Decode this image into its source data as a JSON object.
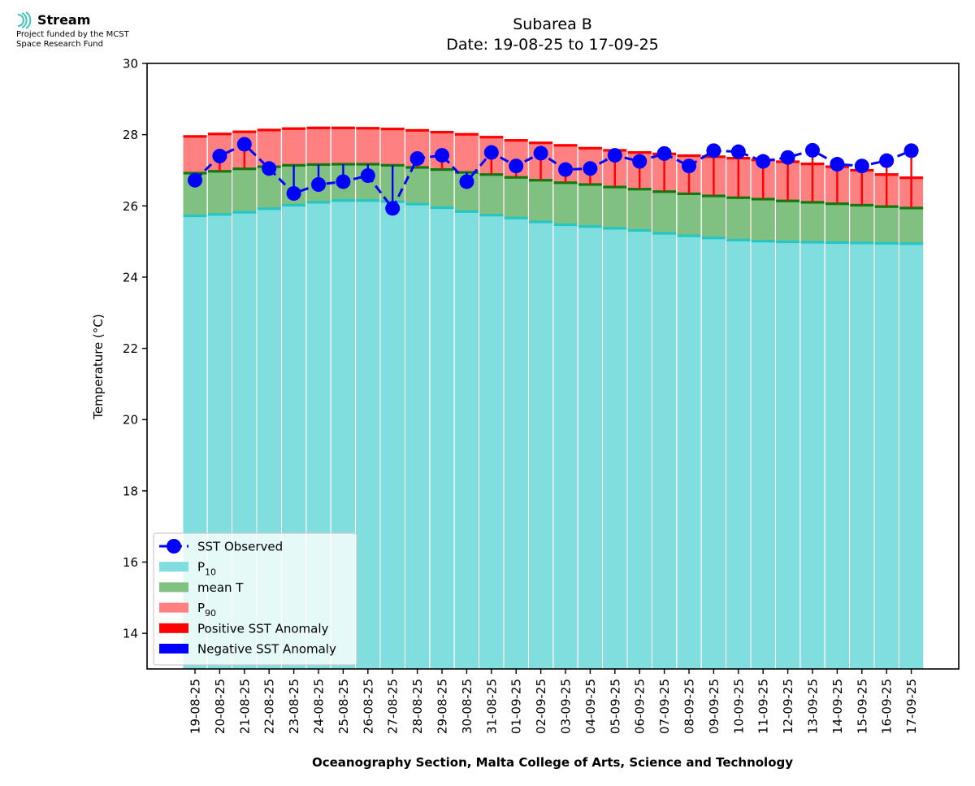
{
  "logo": {
    "name": "Stream",
    "line1": "Project funded by the MCST",
    "line2": "Space Research Fund"
  },
  "chart_data": {
    "type": "bar",
    "title": "Subarea B",
    "subtitle": "Date: 19-08-25 to 17-09-25",
    "xlabel": "Oceanography Section, Malta College of Arts, Science and Technology",
    "ylabel": "Temperature (°C)",
    "ylim": [
      13,
      30
    ],
    "yticks": [
      14,
      16,
      18,
      20,
      22,
      24,
      26,
      28,
      30
    ],
    "grid": false,
    "legend_placement": "lower-left",
    "categories": [
      "19-08-25",
      "20-08-25",
      "21-08-25",
      "22-08-25",
      "23-08-25",
      "24-08-25",
      "25-08-25",
      "26-08-25",
      "27-08-25",
      "28-08-25",
      "29-08-25",
      "30-08-25",
      "31-08-25",
      "01-09-25",
      "02-09-25",
      "03-09-25",
      "04-09-25",
      "05-09-25",
      "06-09-25",
      "07-09-25",
      "08-09-25",
      "09-09-25",
      "10-09-25",
      "11-09-25",
      "12-09-25",
      "13-09-25",
      "14-09-25",
      "15-09-25",
      "16-09-25",
      "17-09-25"
    ],
    "series": [
      {
        "name": "P10",
        "color": "#80dede",
        "edge_color": "#26c6c6",
        "values": [
          25.72,
          25.76,
          25.82,
          25.92,
          26.02,
          26.1,
          26.15,
          26.15,
          26.12,
          26.05,
          25.95,
          25.84,
          25.74,
          25.66,
          25.55,
          25.47,
          25.42,
          25.37,
          25.31,
          25.23,
          25.16,
          25.1,
          25.04,
          25.01,
          24.99,
          24.98,
          24.97,
          24.96,
          24.95,
          24.94
        ]
      },
      {
        "name": "mean T",
        "color": "#80c080",
        "edge_color": "#0f7a0f",
        "values": [
          26.92,
          26.97,
          27.04,
          27.1,
          27.14,
          27.16,
          27.17,
          27.17,
          27.14,
          27.08,
          27.02,
          26.94,
          26.88,
          26.8,
          26.72,
          26.65,
          26.6,
          26.53,
          26.47,
          26.4,
          26.34,
          26.28,
          26.23,
          26.19,
          26.14,
          26.1,
          26.06,
          26.02,
          25.98,
          25.94
        ]
      },
      {
        "name": "P90",
        "color": "#ff8080",
        "edge_color": "#ff0000",
        "values": [
          27.95,
          28.02,
          28.08,
          28.13,
          28.17,
          28.19,
          28.19,
          28.18,
          28.16,
          28.12,
          28.07,
          28.01,
          27.93,
          27.84,
          27.77,
          27.7,
          27.62,
          27.56,
          27.5,
          27.46,
          27.41,
          27.38,
          27.34,
          27.29,
          27.24,
          27.18,
          27.1,
          27.0,
          26.88,
          26.79
        ]
      },
      {
        "name": "SST Observed",
        "color": "#0000ff",
        "line": "dashed",
        "marker": "circle",
        "values": [
          26.72,
          27.4,
          27.73,
          27.05,
          26.35,
          26.6,
          26.68,
          26.85,
          25.93,
          27.33,
          27.42,
          26.68,
          27.5,
          27.12,
          27.48,
          27.02,
          27.05,
          27.42,
          27.25,
          27.47,
          27.12,
          27.55,
          27.52,
          27.25,
          27.36,
          27.56,
          27.17,
          27.12,
          27.27,
          27.55
        ]
      }
    ],
    "legend": [
      {
        "label": "SST Observed",
        "kind": "line-marker",
        "color": "#0000ff"
      },
      {
        "label": "P",
        "sub": "10",
        "kind": "patch",
        "color": "#80dede"
      },
      {
        "label": "mean T",
        "kind": "patch",
        "color": "#80c080"
      },
      {
        "label": "P",
        "sub": "90",
        "kind": "patch",
        "color": "#ff8080"
      },
      {
        "label": "Positive SST Anomaly",
        "kind": "patch",
        "color": "#ff0000"
      },
      {
        "label": "Negative SST Anomaly",
        "kind": "patch",
        "color": "#0000ff"
      }
    ],
    "colors": {
      "positive_anomaly": "#ff0000",
      "negative_anomaly": "#0000ff",
      "bar_gap": "#ffffff"
    }
  }
}
